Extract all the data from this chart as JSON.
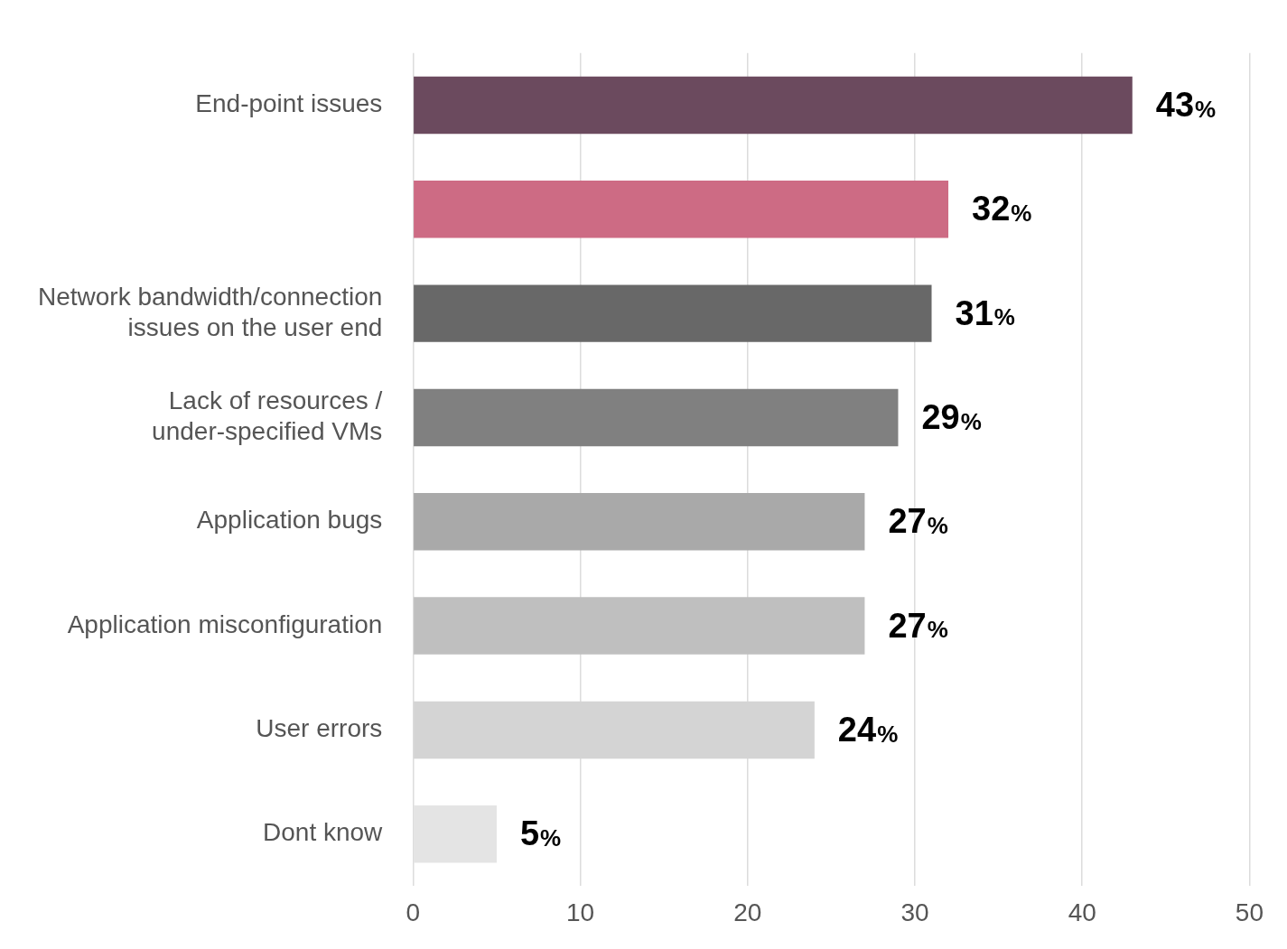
{
  "chart_data": {
    "type": "bar",
    "orientation": "horizontal",
    "categories": [
      "End-point issues",
      null,
      "Network bandwidth/connection issues on the user end",
      "Lack of resources / under-specified VMs",
      "Application bugs",
      "Application misconfiguration",
      "User errors",
      "Dont know"
    ],
    "values": [
      43,
      32,
      31,
      29,
      27,
      27,
      24,
      5
    ],
    "colors": [
      "#6b4a5e",
      "#cd6b84",
      "#686868",
      "#808080",
      "#a9a9a9",
      "#bfbfbf",
      "#d4d4d4",
      "#e4e4e4"
    ],
    "value_labels": [
      "43%",
      "32%",
      "31%",
      "29%",
      "27%",
      "27%",
      "24%",
      "5%"
    ],
    "xlim": [
      0,
      50
    ],
    "xticks": [
      0,
      10,
      20,
      30,
      40,
      50
    ],
    "grid": "x",
    "legend": false
  }
}
